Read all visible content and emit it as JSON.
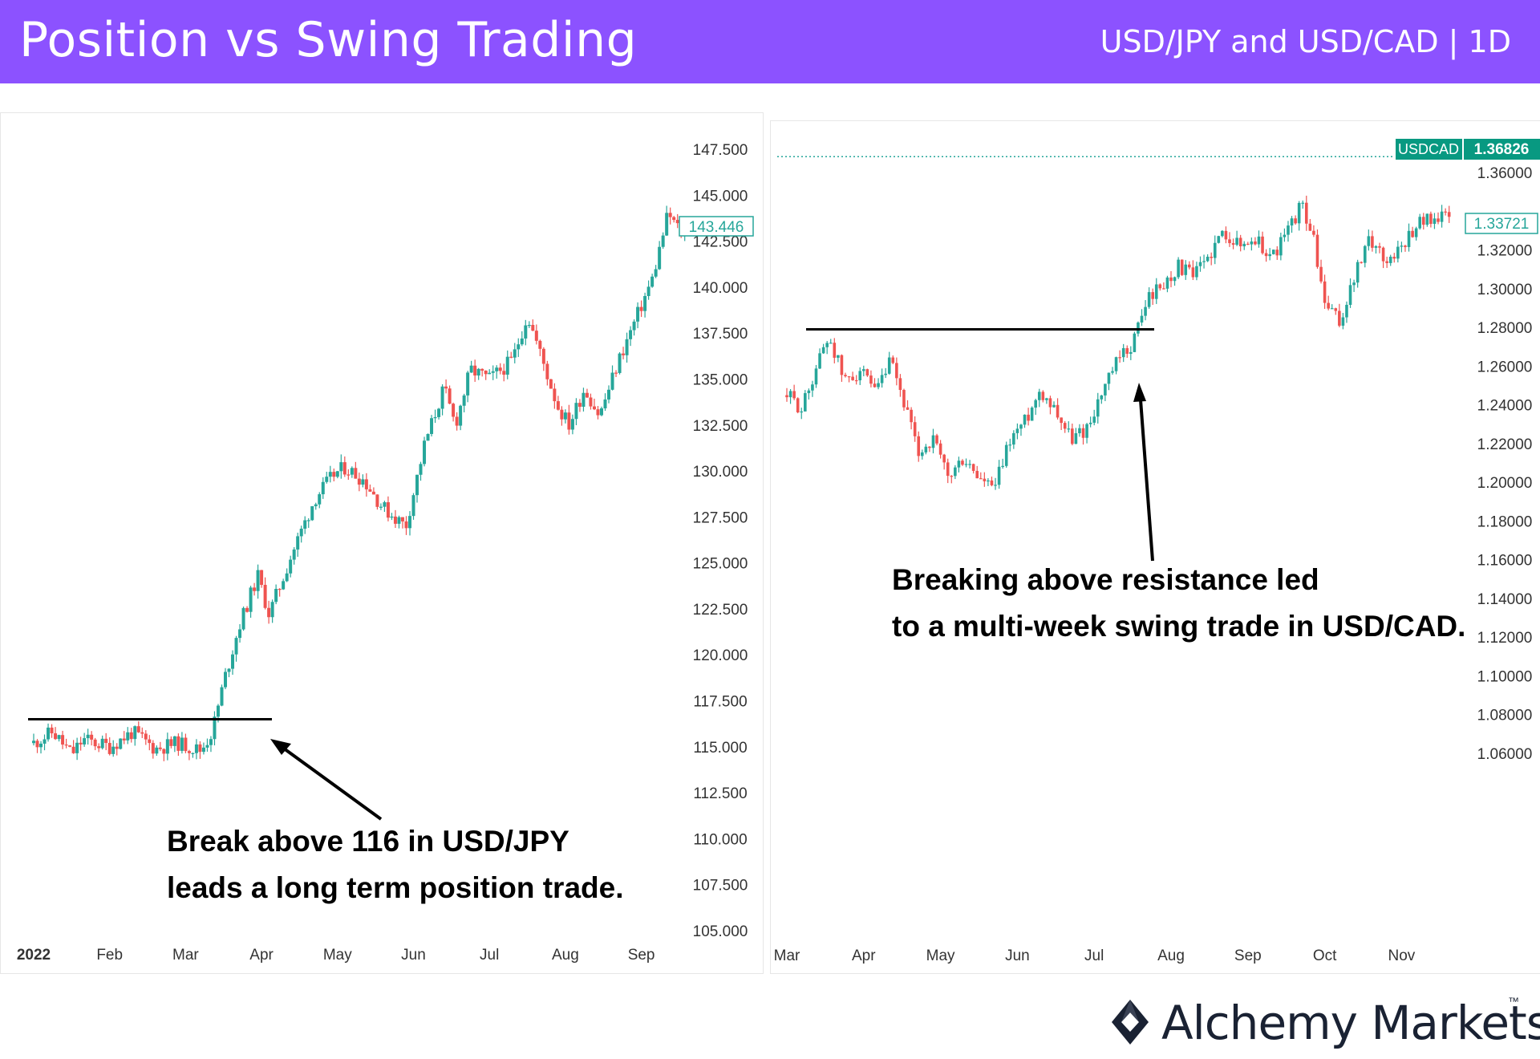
{
  "header": {
    "title": "Position vs Swing Trading",
    "subtitle": "USD/JPY and USD/CAD | 1D"
  },
  "colors": {
    "header": "#8c52ff",
    "up": "#26a69a",
    "down": "#ef5350",
    "accent": "#089981"
  },
  "brand": {
    "name": "Alchemy Markets",
    "tm": "™",
    "icon": "alchemy-diamond-icon"
  },
  "chart_data": [
    {
      "type": "candlestick",
      "symbol": "USD/JPY",
      "ylim": [
        105,
        147.5
      ],
      "yticks": [
        "147.500",
        "145.000",
        "142.500",
        "140.000",
        "137.500",
        "135.000",
        "132.500",
        "130.000",
        "127.500",
        "125.000",
        "122.500",
        "120.000",
        "117.500",
        "115.000",
        "112.500",
        "110.000",
        "107.500",
        "105.000"
      ],
      "xticks": [
        "2022",
        "Feb",
        "Mar",
        "Apr",
        "May",
        "Jun",
        "Jul",
        "Aug",
        "Sep"
      ],
      "last_price_label": "143.446",
      "last_price": 143.446,
      "resistance_level": 116.5,
      "annotation": [
        "Break above 116 in USD/JPY",
        "leads a long term position trade."
      ],
      "series": [
        {
          "m": 0,
          "v": 115.2
        },
        {
          "m": 0.25,
          "v": 115.8
        },
        {
          "m": 0.5,
          "v": 114.6
        },
        {
          "m": 0.65,
          "v": 115.4
        },
        {
          "m": 1.0,
          "v": 115.0
        },
        {
          "m": 1.3,
          "v": 115.8
        },
        {
          "m": 1.6,
          "v": 114.9
        },
        {
          "m": 1.9,
          "v": 115.2
        },
        {
          "m": 2.2,
          "v": 114.8
        },
        {
          "m": 2.35,
          "v": 115.8
        },
        {
          "m": 2.5,
          "v": 118.5
        },
        {
          "m": 2.7,
          "v": 121.5
        },
        {
          "m": 2.95,
          "v": 124.3
        },
        {
          "m": 3.1,
          "v": 122.2
        },
        {
          "m": 3.4,
          "v": 125.5
        },
        {
          "m": 3.7,
          "v": 128.5
        },
        {
          "m": 3.95,
          "v": 129.8
        },
        {
          "m": 4.1,
          "v": 130.2
        },
        {
          "m": 4.35,
          "v": 129.5
        },
        {
          "m": 4.6,
          "v": 128.0
        },
        {
          "m": 4.9,
          "v": 127.0
        },
        {
          "m": 5.15,
          "v": 131.5
        },
        {
          "m": 5.4,
          "v": 134.5
        },
        {
          "m": 5.55,
          "v": 132.5
        },
        {
          "m": 5.75,
          "v": 135.5
        },
        {
          "m": 6.0,
          "v": 135.0
        },
        {
          "m": 6.3,
          "v": 136.0
        },
        {
          "m": 6.5,
          "v": 138.5
        },
        {
          "m": 6.7,
          "v": 136.0
        },
        {
          "m": 6.9,
          "v": 133.5
        },
        {
          "m": 7.05,
          "v": 132.5
        },
        {
          "m": 7.25,
          "v": 134.5
        },
        {
          "m": 7.45,
          "v": 133.0
        },
        {
          "m": 7.7,
          "v": 136.0
        },
        {
          "m": 7.95,
          "v": 138.5
        },
        {
          "m": 8.15,
          "v": 140.5
        },
        {
          "m": 8.35,
          "v": 144.0
        },
        {
          "m": 8.55,
          "v": 142.8
        },
        {
          "m": 8.65,
          "v": 143.4
        }
      ]
    },
    {
      "type": "candlestick",
      "symbol": "USDCAD",
      "ylim": [
        1.05,
        1.37
      ],
      "yticks": [
        "1.36000",
        "1.32000",
        "1.30000",
        "1.28000",
        "1.26000",
        "1.24000",
        "1.22000",
        "1.20000",
        "1.18000",
        "1.16000",
        "1.14000",
        "1.12000",
        "1.10000",
        "1.08000",
        "1.06000"
      ],
      "xticks": [
        "Mar",
        "Apr",
        "May",
        "Jun",
        "Jul",
        "Aug",
        "Sep",
        "Oct",
        "Nov"
      ],
      "symbol_label": "USDCAD",
      "high_price_label": "1.36826",
      "high_price": 1.36826,
      "last_price_label": "1.33721",
      "last_price": 1.33721,
      "resistance_level": 1.279,
      "annotation": [
        "Breaking above resistance led",
        "to a multi-week swing trade in USD/CAD."
      ],
      "series": [
        {
          "m": 0,
          "v": 1.245
        },
        {
          "m": 0.2,
          "v": 1.238
        },
        {
          "m": 0.4,
          "v": 1.262
        },
        {
          "m": 0.55,
          "v": 1.276
        },
        {
          "m": 0.75,
          "v": 1.252
        },
        {
          "m": 0.95,
          "v": 1.258
        },
        {
          "m": 1.15,
          "v": 1.245
        },
        {
          "m": 1.35,
          "v": 1.262
        },
        {
          "m": 1.55,
          "v": 1.238
        },
        {
          "m": 1.7,
          "v": 1.215
        },
        {
          "m": 1.9,
          "v": 1.222
        },
        {
          "m": 2.1,
          "v": 1.202
        },
        {
          "m": 2.3,
          "v": 1.212
        },
        {
          "m": 2.5,
          "v": 1.202
        },
        {
          "m": 2.7,
          "v": 1.196
        },
        {
          "m": 2.9,
          "v": 1.222
        },
        {
          "m": 3.1,
          "v": 1.232
        },
        {
          "m": 3.3,
          "v": 1.248
        },
        {
          "m": 3.5,
          "v": 1.238
        },
        {
          "m": 3.7,
          "v": 1.222
        },
        {
          "m": 3.9,
          "v": 1.228
        },
        {
          "m": 4.1,
          "v": 1.246
        },
        {
          "m": 4.3,
          "v": 1.262
        },
        {
          "m": 4.5,
          "v": 1.272
        },
        {
          "m": 4.7,
          "v": 1.296
        },
        {
          "m": 4.9,
          "v": 1.302
        },
        {
          "m": 5.1,
          "v": 1.312
        },
        {
          "m": 5.3,
          "v": 1.306
        },
        {
          "m": 5.5,
          "v": 1.318
        },
        {
          "m": 5.7,
          "v": 1.33
        },
        {
          "m": 5.9,
          "v": 1.322
        },
        {
          "m": 6.1,
          "v": 1.326
        },
        {
          "m": 6.3,
          "v": 1.316
        },
        {
          "m": 6.5,
          "v": 1.328
        },
        {
          "m": 6.7,
          "v": 1.344
        },
        {
          "m": 6.85,
          "v": 1.326
        },
        {
          "m": 7.0,
          "v": 1.292
        },
        {
          "m": 7.2,
          "v": 1.282
        },
        {
          "m": 7.4,
          "v": 1.308
        },
        {
          "m": 7.6,
          "v": 1.326
        },
        {
          "m": 7.8,
          "v": 1.314
        },
        {
          "m": 8.0,
          "v": 1.322
        },
        {
          "m": 8.2,
          "v": 1.334
        },
        {
          "m": 8.4,
          "v": 1.337
        },
        {
          "m": 8.6,
          "v": 1.337
        }
      ]
    }
  ]
}
